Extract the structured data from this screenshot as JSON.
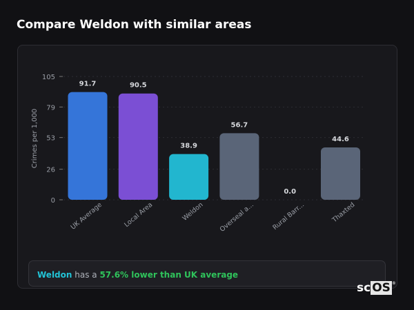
{
  "title": "Compare Weldon with similar areas",
  "chart_data": {
    "type": "bar",
    "categories": [
      "UK Average",
      "Local Area",
      "Weldon",
      "Overseal a...",
      "Rural Barr...",
      "Thaxted"
    ],
    "values": [
      91.7,
      90.5,
      38.9,
      56.7,
      0.0,
      44.6
    ],
    "value_labels": [
      "91.7",
      "90.5",
      "38.9",
      "56.7",
      "0.0",
      "44.6"
    ],
    "colors": [
      "#3575d9",
      "#7b4fd4",
      "#22b6cf",
      "#5a6578",
      "#5a6578",
      "#5a6578"
    ],
    "ylabel": "Crimes per 1,000",
    "xlabel": "",
    "ylim": [
      0,
      105
    ],
    "yticks": [
      0,
      26,
      53,
      79,
      105
    ],
    "grid": true
  },
  "footer": {
    "area": "Weldon",
    "middle": " has a ",
    "highlight": "57.6% lower than UK average"
  },
  "logo": {
    "sc": "sc",
    "os": "OS",
    "mark": "®"
  }
}
